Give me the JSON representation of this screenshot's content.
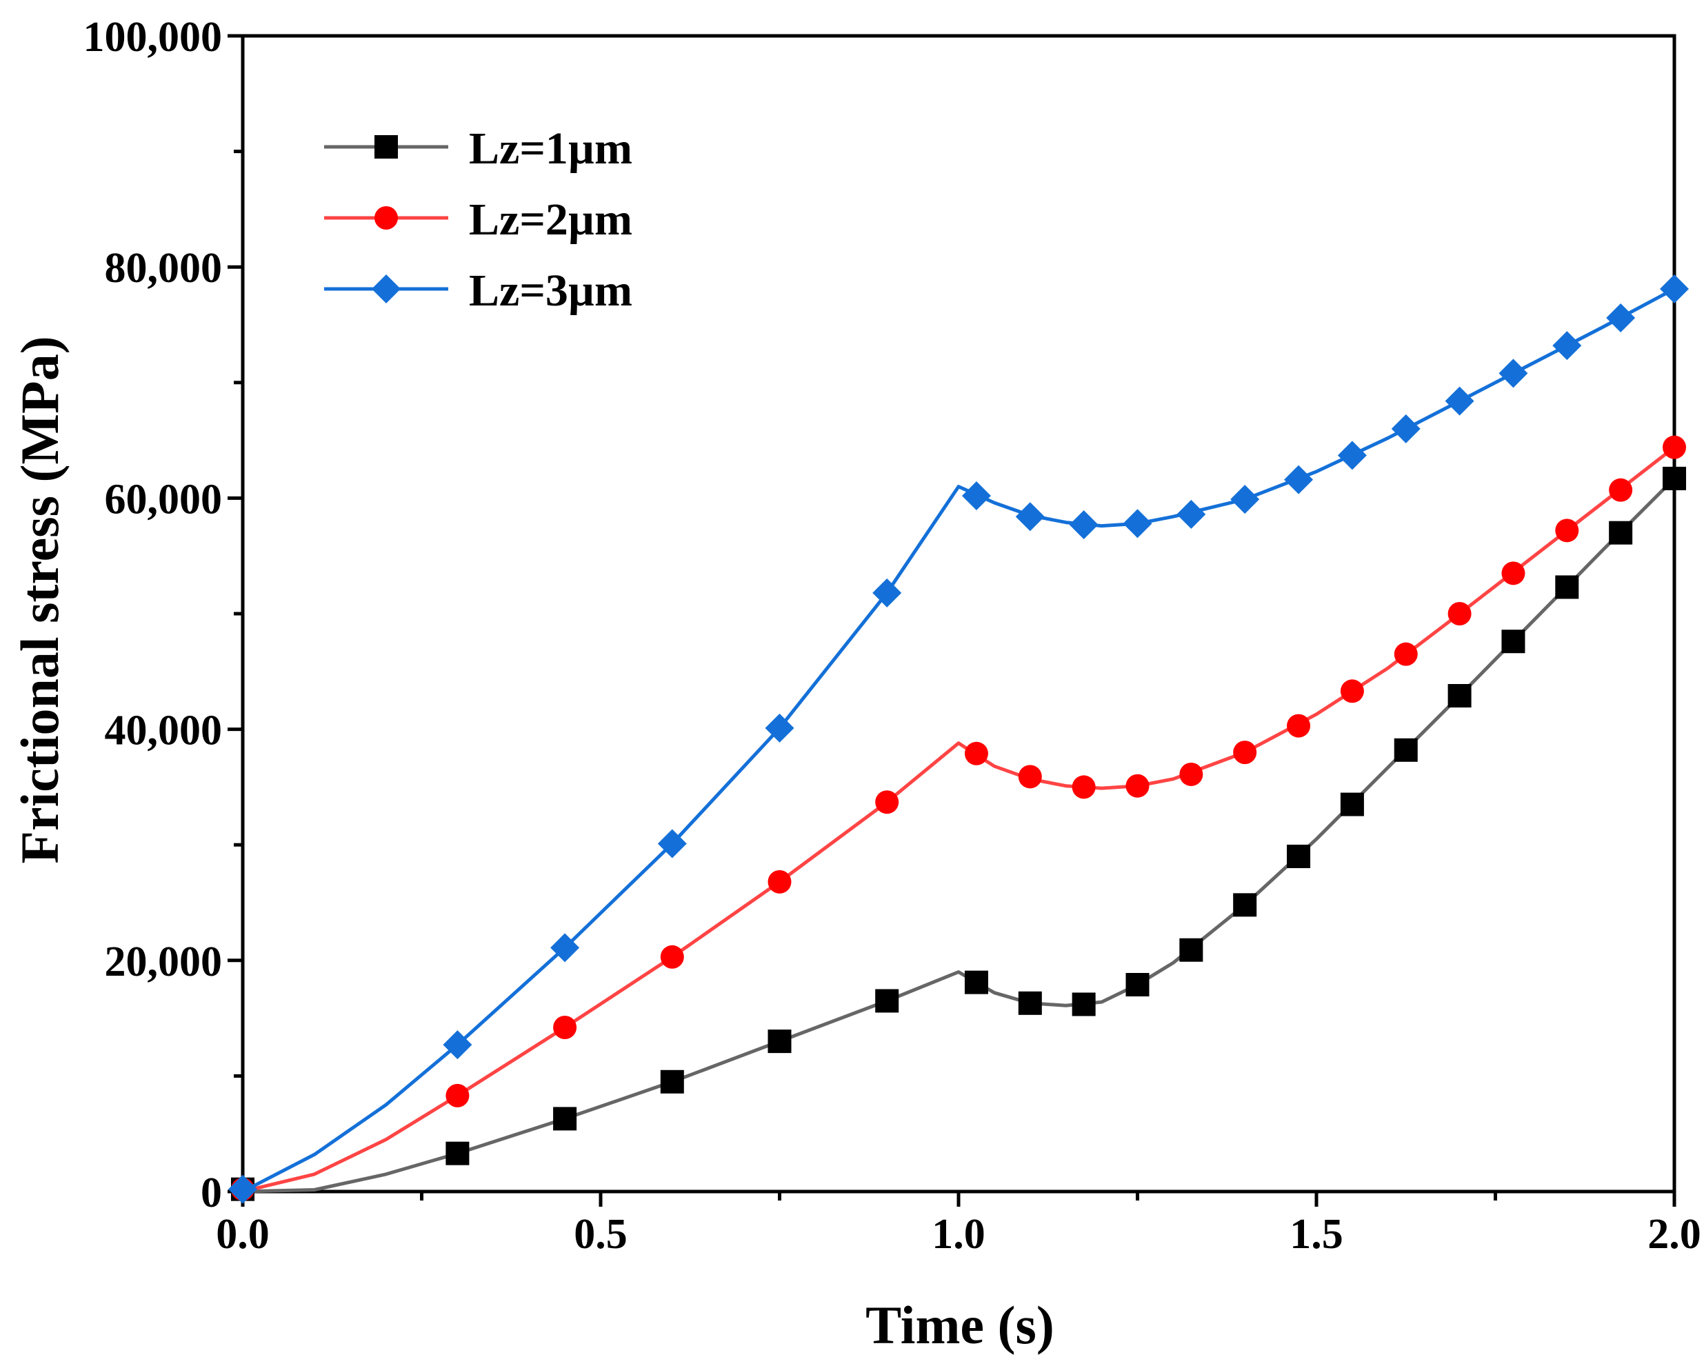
{
  "chart_data": {
    "type": "line",
    "title": "",
    "xlabel": "Time (s)",
    "ylabel": "Frictional stress (MPa)",
    "xlim": [
      0,
      2
    ],
    "ylim": [
      0,
      100000
    ],
    "x_major_ticks": [
      0,
      0.5,
      1.0,
      1.5,
      2.0
    ],
    "x_tick_labels": [
      "0.0",
      "0.5",
      "1.0",
      "1.5",
      "2.0"
    ],
    "x_minor_step": 0.25,
    "y_major_ticks": [
      0,
      20000,
      40000,
      60000,
      80000,
      100000
    ],
    "y_tick_labels": [
      "0",
      "20,000",
      "40,000",
      "60,000",
      "80,000",
      "100,000"
    ],
    "y_minor_step": 10000,
    "grid": false,
    "legend_position": "top-left",
    "series": [
      {
        "name": "Lz=1µm",
        "color": "#666666",
        "marker_color": "#000000",
        "marker": "square",
        "line": [
          [
            0,
            0
          ],
          [
            0.1,
            150
          ],
          [
            0.2,
            1500
          ],
          [
            0.3,
            3300
          ],
          [
            0.45,
            6300
          ],
          [
            0.6,
            9500
          ],
          [
            0.75,
            13000
          ],
          [
            0.9,
            16500
          ],
          [
            1.0,
            19000
          ],
          [
            1.05,
            17200
          ],
          [
            1.1,
            16300
          ],
          [
            1.15,
            16100
          ],
          [
            1.2,
            16400
          ],
          [
            1.25,
            17900
          ],
          [
            1.3,
            19800
          ],
          [
            1.4,
            24800
          ],
          [
            1.5,
            30500
          ],
          [
            1.6,
            36700
          ],
          [
            1.7,
            42900
          ],
          [
            1.8,
            49200
          ],
          [
            1.9,
            55500
          ],
          [
            2.0,
            61700
          ]
        ],
        "markers": [
          [
            0,
            200
          ],
          [
            0.3,
            3300
          ],
          [
            0.45,
            6300
          ],
          [
            0.6,
            9500
          ],
          [
            0.75,
            13000
          ],
          [
            0.9,
            16500
          ],
          [
            1.025,
            18100
          ],
          [
            1.1,
            16300
          ],
          [
            1.175,
            16200
          ],
          [
            1.25,
            17900
          ],
          [
            1.325,
            20900
          ],
          [
            1.4,
            24800
          ],
          [
            1.475,
            29000
          ],
          [
            1.55,
            33500
          ],
          [
            1.625,
            38200
          ],
          [
            1.7,
            42900
          ],
          [
            1.775,
            47600
          ],
          [
            1.85,
            52300
          ],
          [
            1.925,
            57000
          ],
          [
            2.0,
            61700
          ]
        ]
      },
      {
        "name": "Lz=2µm",
        "color": "#ff4444",
        "marker_color": "#ff0000",
        "marker": "circle",
        "line": [
          [
            0,
            0
          ],
          [
            0.1,
            1500
          ],
          [
            0.2,
            4500
          ],
          [
            0.3,
            8300
          ],
          [
            0.45,
            14200
          ],
          [
            0.6,
            20300
          ],
          [
            0.75,
            26800
          ],
          [
            0.9,
            33700
          ],
          [
            1.0,
            38800
          ],
          [
            1.05,
            36800
          ],
          [
            1.1,
            35700
          ],
          [
            1.15,
            35100
          ],
          [
            1.2,
            34900
          ],
          [
            1.25,
            35100
          ],
          [
            1.3,
            35700
          ],
          [
            1.4,
            38000
          ],
          [
            1.5,
            41300
          ],
          [
            1.6,
            45300
          ],
          [
            1.7,
            50000
          ],
          [
            1.8,
            54800
          ],
          [
            1.9,
            59600
          ],
          [
            2.0,
            64400
          ]
        ],
        "markers": [
          [
            0,
            200
          ],
          [
            0.3,
            8300
          ],
          [
            0.45,
            14200
          ],
          [
            0.6,
            20300
          ],
          [
            0.75,
            26800
          ],
          [
            0.9,
            33700
          ],
          [
            1.025,
            37900
          ],
          [
            1.1,
            35900
          ],
          [
            1.175,
            35000
          ],
          [
            1.25,
            35100
          ],
          [
            1.325,
            36100
          ],
          [
            1.4,
            38000
          ],
          [
            1.475,
            40300
          ],
          [
            1.55,
            43300
          ],
          [
            1.625,
            46500
          ],
          [
            1.7,
            50000
          ],
          [
            1.775,
            53500
          ],
          [
            1.85,
            57200
          ],
          [
            1.925,
            60700
          ],
          [
            2.0,
            64400
          ]
        ]
      },
      {
        "name": "Lz=3µm",
        "color": "#1470d8",
        "marker_color": "#1470d8",
        "marker": "diamond",
        "line": [
          [
            0,
            0
          ],
          [
            0.1,
            3200
          ],
          [
            0.2,
            7500
          ],
          [
            0.3,
            12700
          ],
          [
            0.45,
            21100
          ],
          [
            0.6,
            30100
          ],
          [
            0.75,
            40100
          ],
          [
            0.9,
            51800
          ],
          [
            1.0,
            61000
          ],
          [
            1.05,
            59600
          ],
          [
            1.1,
            58500
          ],
          [
            1.15,
            57900
          ],
          [
            1.2,
            57600
          ],
          [
            1.25,
            57800
          ],
          [
            1.3,
            58400
          ],
          [
            1.4,
            59900
          ],
          [
            1.5,
            62300
          ],
          [
            1.6,
            65200
          ],
          [
            1.7,
            68400
          ],
          [
            1.8,
            71600
          ],
          [
            1.9,
            74800
          ],
          [
            2.0,
            78100
          ]
        ],
        "markers": [
          [
            0,
            200
          ],
          [
            0.3,
            12700
          ],
          [
            0.45,
            21100
          ],
          [
            0.6,
            30100
          ],
          [
            0.75,
            40100
          ],
          [
            0.9,
            51800
          ],
          [
            1.025,
            60200
          ],
          [
            1.1,
            58400
          ],
          [
            1.175,
            57700
          ],
          [
            1.25,
            57800
          ],
          [
            1.325,
            58600
          ],
          [
            1.4,
            59900
          ],
          [
            1.475,
            61600
          ],
          [
            1.55,
            63700
          ],
          [
            1.625,
            66000
          ],
          [
            1.7,
            68400
          ],
          [
            1.775,
            70800
          ],
          [
            1.85,
            73200
          ],
          [
            1.925,
            75600
          ],
          [
            2.0,
            78100
          ]
        ]
      }
    ]
  }
}
